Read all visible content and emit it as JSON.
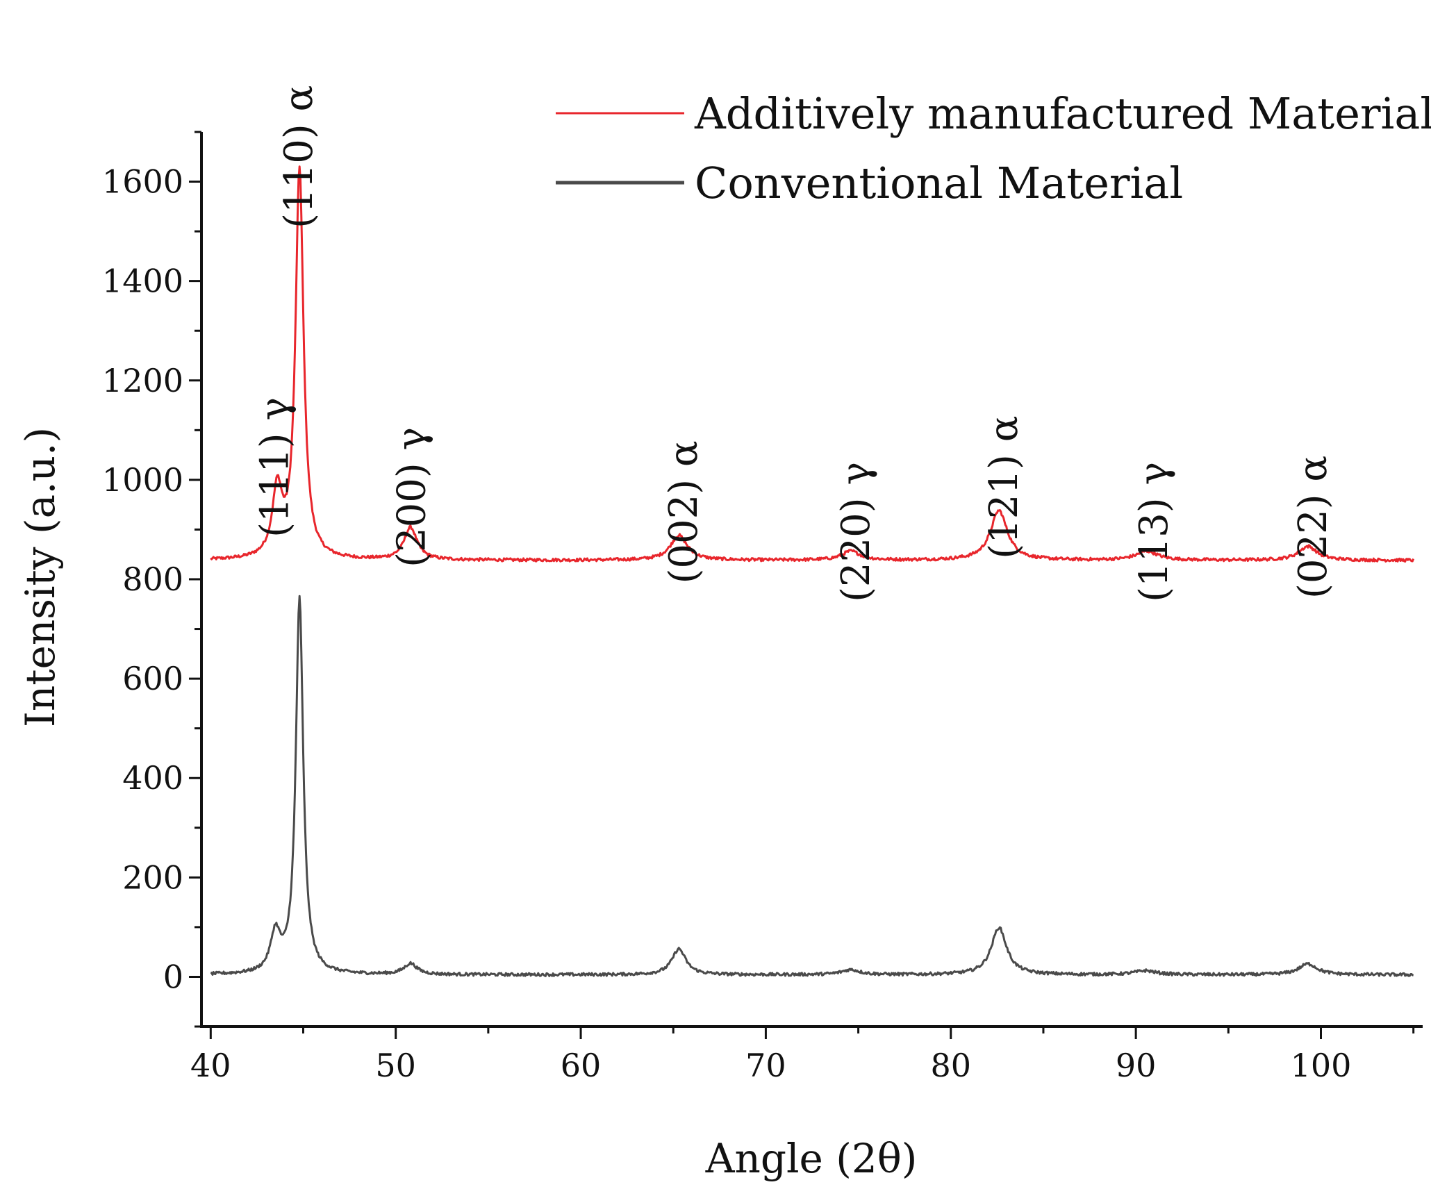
{
  "chart_data": {
    "type": "line",
    "title": "",
    "xlabel": "Angle (2θ)",
    "ylabel": "Intensity (a.u.)",
    "xlim": [
      39.5,
      105.5
    ],
    "ylim": [
      -100,
      1700
    ],
    "x_ticks": [
      40,
      50,
      60,
      70,
      80,
      90,
      100
    ],
    "x_tick_labels": [
      "40",
      "50",
      "60",
      "70",
      "80",
      "90",
      "100"
    ],
    "y_ticks": [
      0,
      200,
      400,
      600,
      800,
      1000,
      1200,
      1400,
      1600
    ],
    "y_tick_labels": [
      "0",
      "200",
      "400",
      "600",
      "800",
      "1000",
      "1200",
      "1400",
      "1600"
    ],
    "grid": false,
    "legend_position": "top-right",
    "series": [
      {
        "name": "Additively manufactured Material",
        "color": "#e8262c",
        "baseline": 838,
        "x_range": [
          40,
          105
        ],
        "peaks": [
          {
            "x": 43.6,
            "height": 135,
            "width": 0.32
          },
          {
            "x": 44.8,
            "height": 785,
            "width": 0.26
          },
          {
            "x": 50.8,
            "height": 65,
            "width": 0.42
          },
          {
            "x": 65.3,
            "height": 50,
            "width": 0.55
          },
          {
            "x": 74.6,
            "height": 18,
            "width": 0.6
          },
          {
            "x": 82.6,
            "height": 100,
            "width": 0.55
          },
          {
            "x": 90.6,
            "height": 18,
            "width": 0.7
          },
          {
            "x": 99.3,
            "height": 28,
            "width": 0.6
          }
        ]
      },
      {
        "name": "Conventional Material",
        "color": "#4a4a4a",
        "baseline": 4,
        "x_range": [
          40,
          105
        ],
        "peaks": [
          {
            "x": 43.5,
            "height": 78,
            "width": 0.32
          },
          {
            "x": 44.8,
            "height": 755,
            "width": 0.24
          },
          {
            "x": 50.8,
            "height": 22,
            "width": 0.42
          },
          {
            "x": 65.3,
            "height": 52,
            "width": 0.45
          },
          {
            "x": 74.6,
            "height": 10,
            "width": 0.6
          },
          {
            "x": 82.6,
            "height": 95,
            "width": 0.5
          },
          {
            "x": 90.5,
            "height": 8,
            "width": 0.7
          },
          {
            "x": 99.3,
            "height": 22,
            "width": 0.6
          }
        ]
      }
    ],
    "annotations": [
      {
        "text": "(111) γ",
        "x": 43.5,
        "y": 1025
      },
      {
        "text": "(110) α",
        "x": 44.8,
        "y": 1650
      },
      {
        "text": "(200) γ",
        "x": 50.9,
        "y": 965
      },
      {
        "text": "(002) α",
        "x": 65.6,
        "y": 935
      },
      {
        "text": "(220) γ",
        "x": 74.9,
        "y": 895
      },
      {
        "text": "(121) α",
        "x": 82.9,
        "y": 985
      },
      {
        "text": "(113) γ",
        "x": 91.0,
        "y": 895
      },
      {
        "text": "(022) α",
        "x": 99.6,
        "y": 905
      }
    ]
  }
}
